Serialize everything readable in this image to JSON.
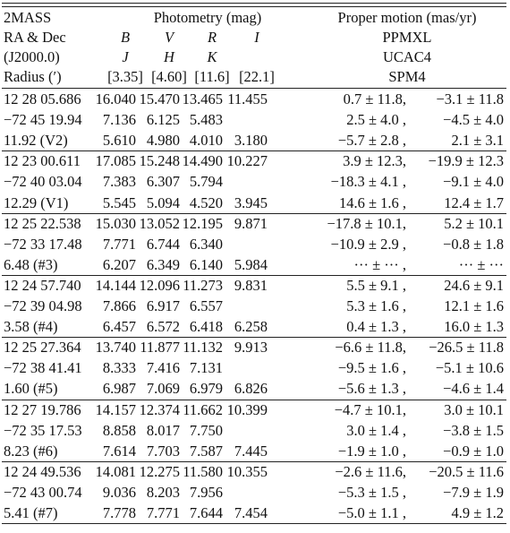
{
  "header": {
    "rows": [
      [
        "2MASS",
        "Photometry (mag)",
        "Proper motion (mas/yr)"
      ],
      [
        "RA & Dec",
        "B",
        "V",
        "R",
        "I",
        "PPMXL"
      ],
      [
        "(J2000.0)",
        "J",
        "H",
        "K",
        "UCAC4"
      ],
      [
        "Radius (′)",
        "[3.35]",
        "[4.60]",
        "[11.6]",
        "[22.1]",
        "SPM4"
      ]
    ]
  },
  "groups": [
    {
      "rows": [
        {
          "id": "12 28 05.686",
          "phot": [
            "16.040",
            "15.470",
            "13.465",
            "11.455"
          ],
          "pm": [
            "0.7 ± 11.8,",
            "−3.1 ± 11.8"
          ]
        },
        {
          "id": "−72 45 19.94",
          "phot": [
            "7.136",
            "6.125",
            "5.483"
          ],
          "pm": [
            "2.5 ± 4.0 ,",
            "−4.5 ± 4.0"
          ]
        },
        {
          "id": "11.92 (V2)",
          "phot": [
            "5.610",
            "4.980",
            "4.010",
            "3.180"
          ],
          "pm": [
            "−5.7 ± 2.8 ,",
            "2.1 ± 3.1"
          ]
        }
      ]
    },
    {
      "rows": [
        {
          "id": "12 23 00.611",
          "phot": [
            "17.085",
            "15.248",
            "14.490",
            "10.227"
          ],
          "pm": [
            "3.9 ± 12.3,",
            "−19.9 ± 12.3"
          ]
        },
        {
          "id": "−72 40 03.04",
          "phot": [
            "7.383",
            "6.307",
            "5.794"
          ],
          "pm": [
            "−18.3 ± 4.1 ,",
            "−9.1 ± 4.0"
          ]
        },
        {
          "id": "12.29 (V1)",
          "phot": [
            "5.545",
            "5.094",
            "4.520",
            "3.945"
          ],
          "pm": [
            "14.6 ± 1.6 ,",
            "12.4 ± 1.7"
          ]
        }
      ]
    },
    {
      "rows": [
        {
          "id": "12 25 22.538",
          "phot": [
            "15.030",
            "13.052",
            "12.195",
            "9.871"
          ],
          "pm": [
            "−17.8 ± 10.1,",
            "5.2 ± 10.1"
          ]
        },
        {
          "id": "−72 33 17.48",
          "phot": [
            "7.771",
            "6.744",
            "6.340"
          ],
          "pm": [
            "−10.9 ± 2.9 ,",
            "−0.8 ± 1.8"
          ]
        },
        {
          "id": "6.48 (#3)",
          "phot": [
            "6.207",
            "6.349",
            "6.140",
            "5.984"
          ],
          "pm": [
            "··· ± ··· ,",
            "··· ± ···"
          ]
        }
      ]
    },
    {
      "rows": [
        {
          "id": "12 24 57.740",
          "phot": [
            "14.144",
            "12.096",
            "11.273",
            "9.831"
          ],
          "pm": [
            "5.5 ± 9.1 ,",
            "24.6 ± 9.1"
          ]
        },
        {
          "id": "−72 39 04.98",
          "phot": [
            "7.866",
            "6.917",
            "6.557"
          ],
          "pm": [
            "5.3 ± 1.6 ,",
            "12.1 ± 1.6"
          ]
        },
        {
          "id": "3.58 (#4)",
          "phot": [
            "6.457",
            "6.572",
            "6.418",
            "6.258"
          ],
          "pm": [
            "0.4 ± 1.3 ,",
            "16.0 ± 1.3"
          ]
        }
      ]
    },
    {
      "rows": [
        {
          "id": "12 25 27.364",
          "phot": [
            "13.740",
            "11.877",
            "11.132",
            "9.913"
          ],
          "pm": [
            "−6.6 ± 11.8,",
            "−26.5 ± 11.8"
          ]
        },
        {
          "id": "−72 38 41.41",
          "phot": [
            "8.333",
            "7.416",
            "7.131"
          ],
          "pm": [
            "−9.5 ± 1.6 ,",
            "−5.1 ± 10.6"
          ]
        },
        {
          "id": "1.60 (#5)",
          "phot": [
            "6.987",
            "7.069",
            "6.979",
            "6.826"
          ],
          "pm": [
            "−5.6 ± 1.3 ,",
            "−4.6 ± 1.4"
          ]
        }
      ]
    },
    {
      "rows": [
        {
          "id": "12 27 19.786",
          "phot": [
            "14.157",
            "12.374",
            "11.662",
            "10.399"
          ],
          "pm": [
            "−4.7 ± 10.1,",
            "3.0 ± 10.1"
          ]
        },
        {
          "id": "−72 35 17.53",
          "phot": [
            "8.858",
            "8.017",
            "7.750"
          ],
          "pm": [
            "3.0 ± 1.4 ,",
            "−3.8 ± 1.5"
          ]
        },
        {
          "id": "8.23 (#6)",
          "phot": [
            "7.614",
            "7.703",
            "7.587",
            "7.445"
          ],
          "pm": [
            "−1.9 ± 1.0 ,",
            "−0.9 ± 1.0"
          ]
        }
      ]
    },
    {
      "rows": [
        {
          "id": "12 24 49.536",
          "phot": [
            "14.081",
            "12.275",
            "11.580",
            "10.355"
          ],
          "pm": [
            "−2.6 ± 11.6,",
            "−20.5 ± 11.6"
          ]
        },
        {
          "id": "−72 43 00.74",
          "phot": [
            "9.036",
            "8.203",
            "7.956"
          ],
          "pm": [
            "−5.3 ± 1.5 ,",
            "−7.9 ± 1.9"
          ]
        },
        {
          "id": "5.41 (#7)",
          "phot": [
            "7.778",
            "7.771",
            "7.644",
            "7.454"
          ],
          "pm": [
            "−5.0 ± 1.1 ,",
            "4.9 ± 1.2"
          ]
        }
      ]
    }
  ]
}
